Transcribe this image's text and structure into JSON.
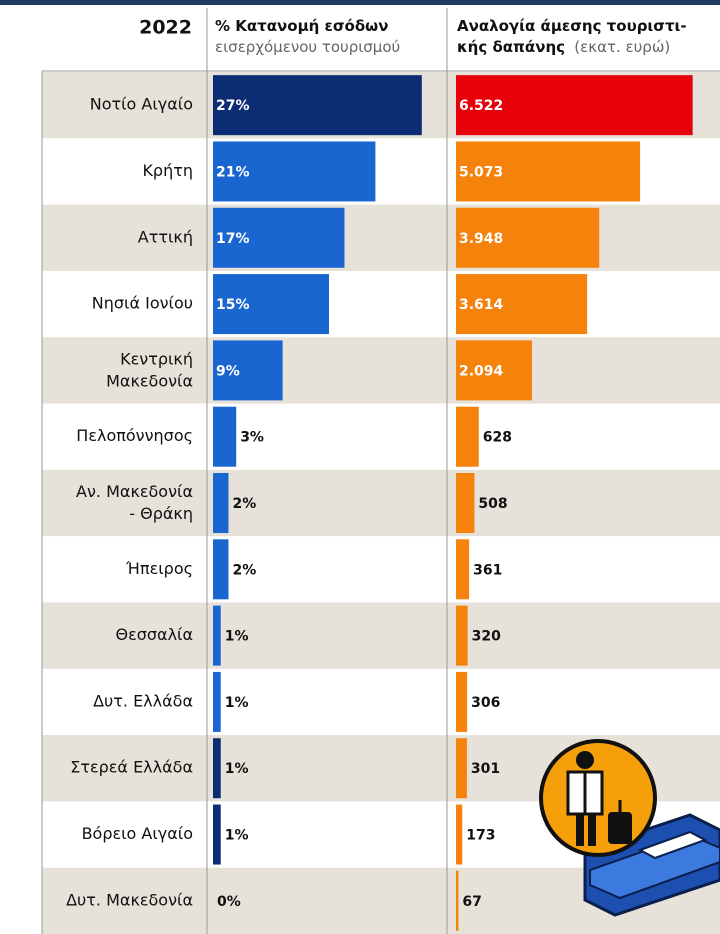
{
  "chart_data": {
    "type": "bar",
    "orientation": "horizontal",
    "title": "2022",
    "categories": [
      "Νοτίο Αιγαίο",
      "Κρήτη",
      "Αττική",
      "Νησιά Ιονίου",
      "Κεντρική Μακεδονία",
      "Πελοπόννησος",
      "Αν. Μακεδονία - Θράκη",
      "Ήπειρος",
      "Θεσσαλία",
      "Δυτ. Ελλάδα",
      "Στερεά Ελλάδα",
      "Βόρειο Αιγαίο",
      "Δυτ. Μακεδονία"
    ],
    "series": [
      {
        "name": "% Κατανομή εσόδων",
        "subtitle": "εισερχόμενου τουρισμού",
        "xlim": [
          0,
          30
        ],
        "colors": [
          "#0c2c74",
          "#1a66d0",
          "#1a66d0",
          "#1a66d0",
          "#1a66d0",
          "#1a66d0",
          "#1a66d0",
          "#1a66d0",
          "#1a66d0",
          "#1a66d0",
          "#0c2c74",
          "#0c2c74",
          "#0c2c74"
        ],
        "values": [
          27,
          21,
          17,
          15,
          9,
          3,
          2,
          2,
          1,
          1,
          1,
          1,
          0
        ],
        "value_labels": [
          "27%",
          "21%",
          "17%",
          "15%",
          "9%",
          "3%",
          "2%",
          "2%",
          "1%",
          "1%",
          "1%",
          "1%",
          "0%"
        ]
      },
      {
        "name": "Αναλογία άμεσης τουριστι- κής δαπάνης",
        "unit": "(εκατ. ευρώ)",
        "xlim": [
          0,
          7000
        ],
        "colors": [
          "#e8000b",
          "#f5820a",
          "#f5820a",
          "#f5820a",
          "#f5820a",
          "#f5820a",
          "#f5820a",
          "#f5820a",
          "#f5820a",
          "#f5820a",
          "#f5820a",
          "#f5820a",
          "#f5820a"
        ],
        "values": [
          6522,
          5073,
          3948,
          3614,
          2094,
          628,
          508,
          361,
          320,
          306,
          301,
          173,
          67
        ],
        "value_labels": [
          "6.522",
          "5.073",
          "3.948",
          "3.614",
          "2.094",
          "628",
          "508",
          "361",
          "320",
          "306",
          "301",
          "173",
          "67"
        ]
      }
    ]
  }
}
